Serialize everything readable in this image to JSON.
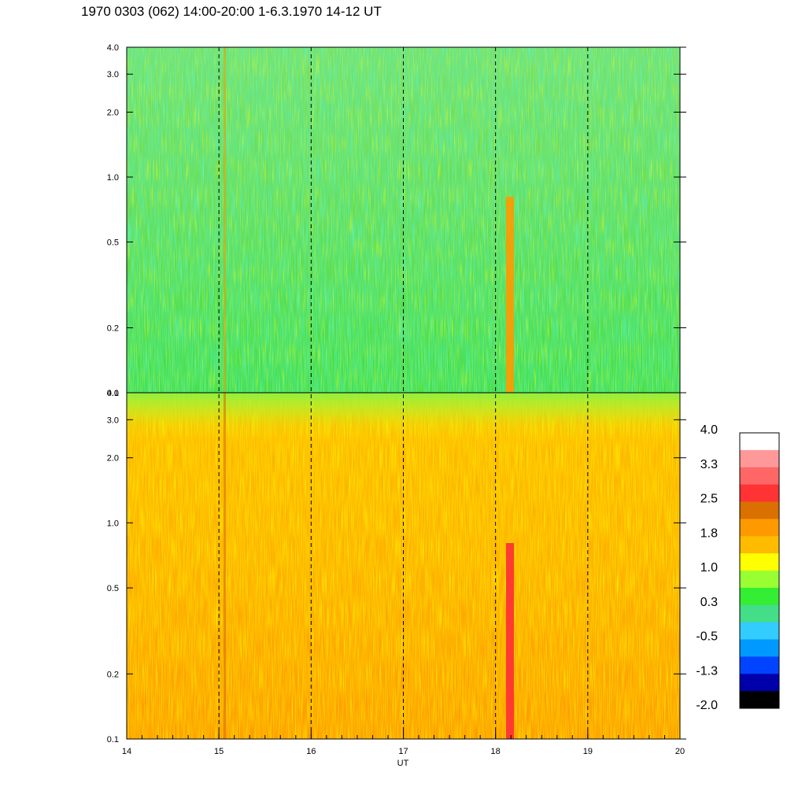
{
  "header": {
    "title": "1970 0303 (062) 14:00-20:00 1-6.3.1970  14-12 UT"
  },
  "chart_data": {
    "type": "heatmap",
    "title": "1970 0303 (062) 14:00-20:00 1-6.3.1970  14-12 UT",
    "xlabel": "UT",
    "ylabel": "",
    "xlim": [
      14,
      20
    ],
    "x_ticks": [
      "14",
      "15",
      "16",
      "17",
      "18",
      "19",
      "20"
    ],
    "dashed_lines_at": [
      15,
      16,
      17,
      18,
      19
    ],
    "grid": false,
    "panels": [
      {
        "name": "upper",
        "yscale": "log",
        "ylim": [
          0.1,
          4.0
        ],
        "y_ticks": [
          {
            "value": 0.1,
            "label": "0.1"
          },
          {
            "value": 0.2,
            "label": "0.2"
          },
          {
            "value": 0.5,
            "label": "0.5"
          },
          {
            "value": 1.0,
            "label": "1.0"
          },
          {
            "value": 2.0,
            "label": "2.0"
          },
          {
            "value": 3.0,
            "label": "3.0"
          },
          {
            "value": 4.0,
            "label": "4.0"
          }
        ],
        "dominant_level": 0.5,
        "notes": "mostly green/teal values; enhanced band near 18.15 UT at low frequencies"
      },
      {
        "name": "lower",
        "yscale": "log",
        "ylim": [
          0.1,
          4.0
        ],
        "y_ticks": [
          {
            "value": 0.1,
            "label": "0.1"
          },
          {
            "value": 0.2,
            "label": "0.2"
          },
          {
            "value": 0.5,
            "label": "0.5"
          },
          {
            "value": 1.0,
            "label": "1.0"
          },
          {
            "value": 2.0,
            "label": "2.0"
          },
          {
            "value": 3.0,
            "label": "3.0"
          },
          {
            "value": 4.0,
            "label": "4.0"
          }
        ],
        "dominant_level": 1.7,
        "notes": "mostly orange/yellow values; red band near 18.15 UT at low frequencies"
      }
    ],
    "colorbar": {
      "labels": [
        "4.0",
        "3.3",
        "2.5",
        "1.8",
        "1.0",
        "0.3",
        "-0.5",
        "-1.3",
        "-2.0"
      ],
      "colors_top_to_bottom": [
        "#ffffff",
        "#ff9999",
        "#ff6666",
        "#ff3333",
        "#d97000",
        "#ff9900",
        "#ffbb00",
        "#ffff00",
        "#99ff33",
        "#33ee33",
        "#44dd88",
        "#33ccff",
        "#0099ff",
        "#0044ff",
        "#0000aa",
        "#000000"
      ]
    }
  }
}
